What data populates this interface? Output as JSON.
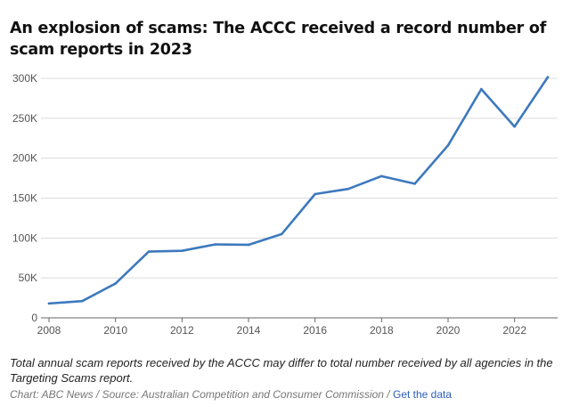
{
  "chart_data": {
    "type": "line",
    "title": "An explosion of scams: The ACCC received a record number of scam reports in 2023",
    "xlabel": "",
    "ylabel": "",
    "x": [
      2008,
      2009,
      2010,
      2011,
      2012,
      2013,
      2014,
      2015,
      2016,
      2017,
      2018,
      2019,
      2020,
      2021,
      2022,
      2023
    ],
    "series": [
      {
        "values": [
          18000,
          21000,
          43000,
          83000,
          84000,
          92000,
          91500,
          105000,
          155000,
          161500,
          177500,
          168000,
          216000,
          286500,
          239500,
          301500
        ]
      }
    ],
    "xlim": [
      2008,
      2023.5
    ],
    "ylim": [
      0,
      300000
    ],
    "x_ticks": [
      2008,
      2010,
      2012,
      2014,
      2016,
      2018,
      2020,
      2022
    ],
    "x_tick_labels": [
      "2008",
      "2010",
      "2012",
      "2014",
      "2016",
      "2018",
      "2020",
      "2022"
    ],
    "y_ticks": [
      0,
      50000,
      100000,
      150000,
      200000,
      250000,
      300000
    ],
    "y_tick_labels": [
      "0",
      "50K",
      "100K",
      "150K",
      "200K",
      "250K",
      "300K"
    ],
    "grid": true,
    "line_color": "#3d79bd"
  },
  "note": "Total annual scam reports received by the ACCC may differ to total number received by all agencies in the Targeting Scams report.",
  "source": {
    "credit": "Chart: ABC News",
    "separator": " / ",
    "source_text": "Source: Australian Competition and Consumer Commission",
    "link_label": "Get the data"
  }
}
